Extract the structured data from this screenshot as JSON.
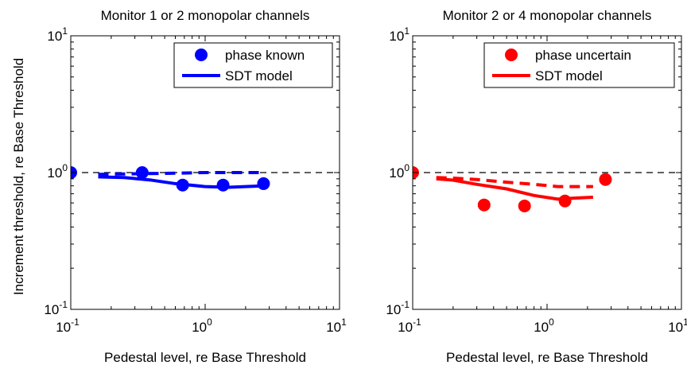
{
  "figure": {
    "ylabel": "Increment threshold, re Base Threshold"
  },
  "chart_data": [
    {
      "type": "scatter",
      "title": "Monitor 1 or 2 monopolar channels",
      "xlabel": "Pedestal level, re Base Threshold",
      "ylabel": "Increment threshold, re Base Threshold",
      "xscale": "log",
      "yscale": "log",
      "xlim": [
        0.1,
        10
      ],
      "ylim": [
        0.1,
        10
      ],
      "xticks": [
        {
          "value": 0.1,
          "base": "10",
          "exp": "-1"
        },
        {
          "value": 1,
          "base": "10",
          "exp": "0"
        },
        {
          "value": 10,
          "base": "10",
          "exp": "1"
        }
      ],
      "yticks": [
        {
          "value": 0.1,
          "base": "10",
          "exp": "-1"
        },
        {
          "value": 1,
          "base": "10",
          "exp": "0"
        },
        {
          "value": 10,
          "base": "10",
          "exp": "1"
        }
      ],
      "grid": false,
      "legend_position": "top-right",
      "color": "#0000ff",
      "reference_line": {
        "y": 1,
        "style": "dashed",
        "color": "#000000"
      },
      "series": [
        {
          "name": "phase known",
          "kind": "points",
          "x": [
            0.1,
            0.34,
            0.68,
            1.36,
            2.72
          ],
          "y": [
            1.0,
            1.0,
            0.81,
            0.81,
            0.83
          ]
        },
        {
          "name": "SDT model",
          "kind": "solid-line",
          "x": [
            0.16,
            0.25,
            0.4,
            0.6,
            1.0,
            1.5,
            2.0,
            2.8
          ],
          "y": [
            0.93,
            0.92,
            0.88,
            0.83,
            0.79,
            0.78,
            0.79,
            0.8
          ]
        },
        {
          "kind": "dashed-line",
          "x": [
            0.16,
            0.3,
            0.6,
            1.0,
            1.5,
            2.0,
            2.8
          ],
          "y": [
            0.97,
            0.98,
            0.99,
            1.0,
            1.0,
            1.0,
            1.0
          ]
        }
      ]
    },
    {
      "type": "scatter",
      "title": "Monitor 2 or 4 monopolar channels",
      "xlabel": "Pedestal level, re Base Threshold",
      "xscale": "log",
      "yscale": "log",
      "xlim": [
        0.1,
        10
      ],
      "ylim": [
        0.1,
        10
      ],
      "xticks": [
        {
          "value": 0.1,
          "base": "10",
          "exp": "-1"
        },
        {
          "value": 1,
          "base": "10",
          "exp": "0"
        },
        {
          "value": 10,
          "base": "10",
          "exp": "1"
        }
      ],
      "yticks": [
        {
          "value": 0.1,
          "base": "10",
          "exp": "-1"
        },
        {
          "value": 1,
          "base": "10",
          "exp": "0"
        },
        {
          "value": 10,
          "base": "10",
          "exp": "1"
        }
      ],
      "grid": false,
      "legend_position": "top-right",
      "color": "#ff0000",
      "reference_line": {
        "y": 1,
        "style": "dashed",
        "color": "#000000"
      },
      "series": [
        {
          "name": "phase uncertain",
          "kind": "points",
          "x": [
            0.1,
            0.34,
            0.68,
            1.36,
            2.72
          ],
          "y": [
            1.0,
            0.58,
            0.57,
            0.62,
            0.89
          ]
        },
        {
          "name": "SDT model",
          "kind": "solid-line",
          "x": [
            0.15,
            0.2,
            0.3,
            0.5,
            0.8,
            1.2,
            1.6,
            2.2
          ],
          "y": [
            0.9,
            0.88,
            0.82,
            0.76,
            0.68,
            0.64,
            0.65,
            0.66
          ]
        },
        {
          "kind": "dashed-line",
          "x": [
            0.15,
            0.2,
            0.3,
            0.5,
            0.8,
            1.2,
            1.6,
            2.2
          ],
          "y": [
            0.92,
            0.91,
            0.89,
            0.85,
            0.82,
            0.79,
            0.79,
            0.79
          ]
        }
      ]
    }
  ]
}
